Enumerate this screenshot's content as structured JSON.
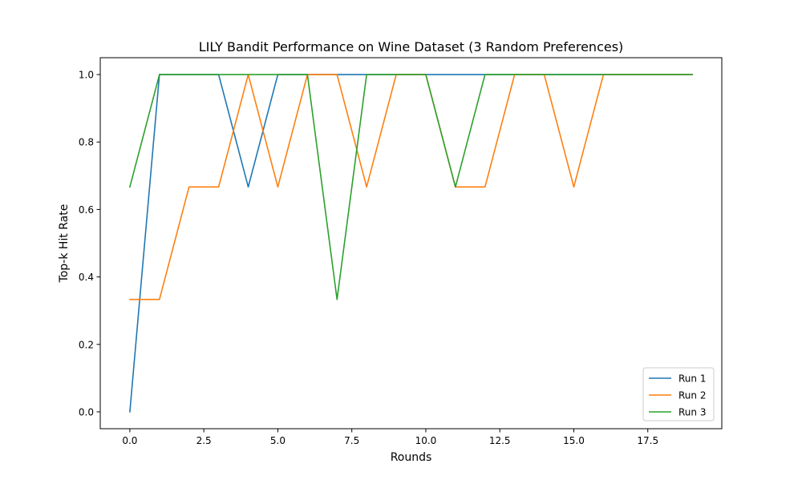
{
  "chart_data": {
    "type": "line",
    "title": "LILY Bandit Performance on Wine Dataset (3 Random Preferences)",
    "xlabel": "Rounds",
    "ylabel": "Top-k Hit Rate",
    "xlim": [
      -1,
      20
    ],
    "ylim": [
      -0.05,
      1.05
    ],
    "xticks": [
      0.0,
      2.5,
      5.0,
      7.5,
      10.0,
      12.5,
      15.0,
      17.5
    ],
    "xtick_labels": [
      "0.0",
      "2.5",
      "5.0",
      "7.5",
      "10.0",
      "12.5",
      "15.0",
      "17.5"
    ],
    "yticks": [
      0.0,
      0.2,
      0.4,
      0.6,
      0.8,
      1.0
    ],
    "ytick_labels": [
      "0.0",
      "0.2",
      "0.4",
      "0.6",
      "0.8",
      "1.0"
    ],
    "grid": false,
    "legend_position": "bottom-right",
    "x": [
      0,
      1,
      2,
      3,
      4,
      5,
      6,
      7,
      8,
      9,
      10,
      11,
      12,
      13,
      14,
      15,
      16,
      17,
      18,
      19
    ],
    "series": [
      {
        "name": "Run 1",
        "color": "#1f77b4",
        "values": [
          0,
          1,
          1,
          1,
          0.6667,
          1,
          1,
          1,
          1,
          1,
          1,
          1,
          1,
          1,
          1,
          1,
          1,
          1,
          1,
          1
        ]
      },
      {
        "name": "Run 2",
        "color": "#ff7f0e",
        "values": [
          0.3333,
          0.3333,
          0.6667,
          0.6667,
          1,
          0.6667,
          1,
          1,
          0.6667,
          1,
          1,
          0.6667,
          0.6667,
          1,
          1,
          0.6667,
          1,
          1,
          1,
          1
        ]
      },
      {
        "name": "Run 3",
        "color": "#2ca02c",
        "values": [
          0.6667,
          1,
          1,
          1,
          1,
          1,
          1,
          0.3333,
          1,
          1,
          1,
          0.6667,
          1,
          1,
          1,
          1,
          1,
          1,
          1,
          1
        ]
      }
    ]
  }
}
